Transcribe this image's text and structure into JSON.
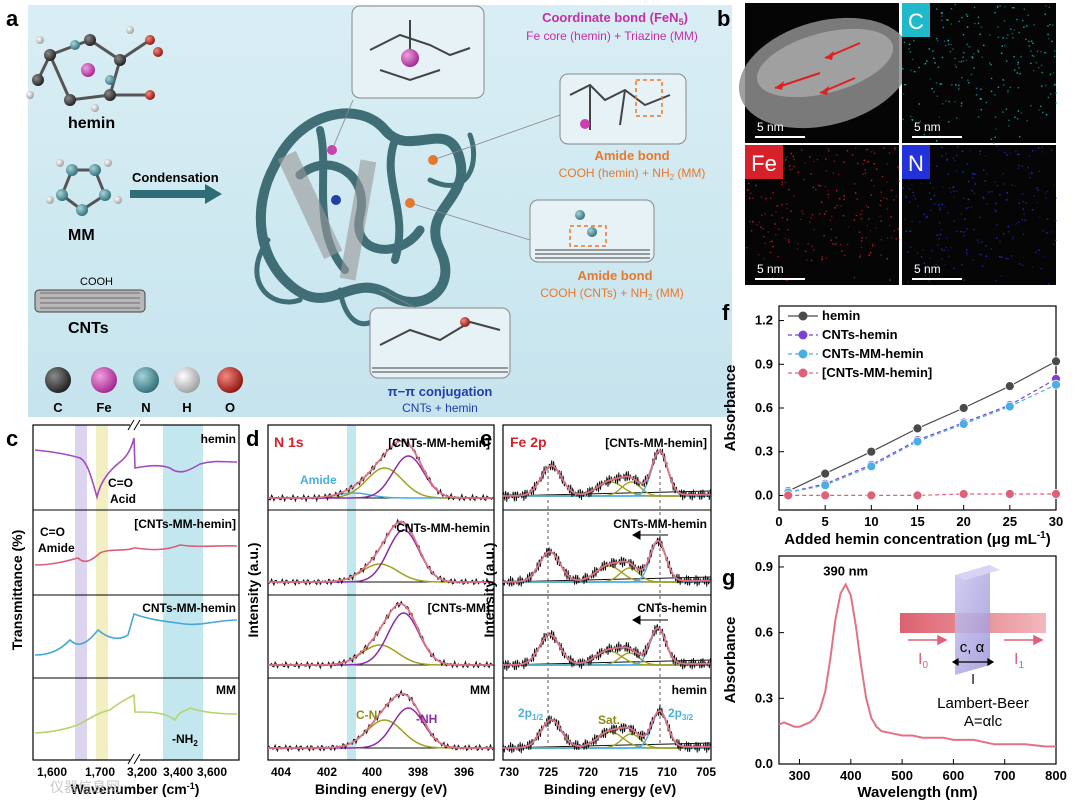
{
  "figure": {
    "panel_labels": [
      "a",
      "b",
      "c",
      "d",
      "e",
      "f",
      "g"
    ],
    "colors": {
      "bg_a": "#cfe7ef",
      "carbon": "#3a3a3a",
      "fe": "#cc3fb3",
      "n": "#4e98a5",
      "h": "#d8d8d8",
      "o": "#c9271f",
      "orange": "#e8782b",
      "purple": "#8a2ca8",
      "blue": "#1f3ea8",
      "curve_pink": "#e07386"
    }
  },
  "panel_a": {
    "hemin": "hemin",
    "mm": "MM",
    "cooh": "COOH",
    "cnts": "CNTs",
    "condensation": "Condensation",
    "coord_title": "Coordinate bond (FeN",
    "coord_sub": "5",
    "coord_close": ")",
    "coord_desc": "Fe core (hemin) + Triazine (MM)",
    "amide1_title": "Amide bond",
    "amide1_desc": "COOH (hemin) + NH",
    "amide1_sub": "2",
    "amide1_close": " (MM)",
    "amide2_title": "Amide bond",
    "amide2_desc": "COOH (CNTs) + NH",
    "amide2_sub": "2",
    "amide2_close": " (MM)",
    "pipi_title": "π−π conjugation",
    "pipi_desc": "CNTs + hemin",
    "legend": [
      "C",
      "Fe",
      "N",
      "H",
      "O"
    ]
  },
  "panel_b": {
    "tiles": [
      {
        "label": "",
        "scale": "5 nm",
        "tint": "#8a8a8a"
      },
      {
        "label": "C",
        "scale": "5 nm",
        "tint": "#1fb9c9"
      },
      {
        "label": "Fe",
        "scale": "5 nm",
        "tint": "#d6202a"
      },
      {
        "label": "N",
        "scale": "5 nm",
        "tint": "#2232d8"
      }
    ]
  },
  "panel_c": {
    "ylabel": "Transmittance (%)",
    "xlabel_pre": "Wavenumber (cm",
    "xlabel_sup": "-1",
    "xlabel_post": ")",
    "xticks": [
      "1,600",
      "1,700",
      "3,200",
      "3,400",
      "3,600"
    ],
    "traces": [
      "hemin",
      "[CNTs-MM-hemin]",
      "CNTs-MM-hemin",
      "MM"
    ],
    "ann_co_acid_1": "C=O",
    "ann_co_acid_2": "Acid",
    "ann_co_amide_1": "C=O",
    "ann_co_amide_2": "Amide",
    "ann_nh2_pre": "-NH",
    "ann_nh2_sub": "2"
  },
  "panel_d": {
    "title": "N 1s",
    "ylabel": "Intensity (a.u.)",
    "xlabel": "Binding energy (eV)",
    "xticks": [
      "404",
      "402",
      "400",
      "398",
      "396"
    ],
    "traces": [
      "[CNTs-MM-hemin]",
      "CNTs-MM-hemin",
      "[CNTs-MM]",
      "MM"
    ],
    "amide": "Amide",
    "cn": "C-N",
    "nh": "-NH"
  },
  "panel_e": {
    "title": "Fe 2p",
    "ylabel": "Intensity (a.u.)",
    "xlabel": "Binding energy (eV)",
    "xticks": [
      "730",
      "725",
      "720",
      "715",
      "710",
      "705"
    ],
    "traces": [
      "[CNTs-MM-hemin]",
      "CNTs-MM-hemin",
      "CNTs-hemin",
      "hemin"
    ],
    "p12": "2p",
    "p12_sub": "1/2",
    "sat": "Sat.",
    "p32": "2p",
    "p32_sub": "3/2"
  },
  "panel_f_text": {
    "xlabel_pre": "Added hemin concentration (μg mL",
    "xlabel_sup": "-1",
    "xlabel_post": ")"
  },
  "panel_g_text": {
    "peak": "390 nm",
    "i0": "I",
    "i0_sub": "0",
    "i1": "I",
    "i1_sub": "1",
    "c_alpha": "c, α",
    "l": "l",
    "law": "Lambert-Beer",
    "eq": "A=αlc"
  },
  "watermark": "仪器信息网",
  "chart_data": [
    {
      "id": "f",
      "type": "line",
      "xlabel": "Added hemin concentration (μg mL-1)",
      "ylabel": "Absorbance",
      "xlim": [
        0,
        30
      ],
      "ylim": [
        -0.1,
        1.3
      ],
      "xticks": [
        0,
        5,
        10,
        15,
        20,
        25,
        30
      ],
      "yticks": [
        0.0,
        0.3,
        0.6,
        0.9,
        1.2
      ],
      "legend_position": "top-left",
      "series": [
        {
          "name": "hemin",
          "color": "#4a4a4a",
          "line": "solid",
          "x": [
            1,
            5,
            10,
            15,
            20,
            25,
            30
          ],
          "values": [
            0.03,
            0.15,
            0.3,
            0.46,
            0.6,
            0.75,
            0.92
          ]
        },
        {
          "name": "CNTs-hemin",
          "color": "#7b3fd6",
          "line": "dashed",
          "x": [
            1,
            5,
            10,
            15,
            20,
            25,
            30
          ],
          "values": [
            0.02,
            0.08,
            0.21,
            0.38,
            0.5,
            0.62,
            0.8
          ]
        },
        {
          "name": "CNTs-MM-hemin",
          "color": "#4aaee3",
          "line": "dashed",
          "x": [
            1,
            5,
            10,
            15,
            20,
            25,
            30
          ],
          "values": [
            0.02,
            0.07,
            0.2,
            0.37,
            0.49,
            0.61,
            0.76
          ]
        },
        {
          "name": "[CNTs-MM-hemin]",
          "color": "#e0607a",
          "line": "dashed",
          "x": [
            1,
            5,
            10,
            15,
            20,
            25,
            30
          ],
          "values": [
            0.0,
            0.0,
            0.0,
            0.0,
            0.01,
            0.01,
            0.01
          ]
        }
      ]
    },
    {
      "id": "g",
      "type": "line",
      "xlabel": "Wavelength (nm)",
      "ylabel": "Absorbance",
      "xlim": [
        260,
        800
      ],
      "ylim": [
        0,
        0.95
      ],
      "xticks": [
        300,
        400,
        500,
        600,
        700,
        800
      ],
      "yticks": [
        0.0,
        0.3,
        0.6,
        0.9
      ],
      "series": [
        {
          "name": "absorbance",
          "color": "#e07386",
          "x": [
            260,
            270,
            280,
            290,
            300,
            310,
            320,
            330,
            340,
            350,
            360,
            370,
            380,
            390,
            400,
            410,
            420,
            430,
            440,
            450,
            460,
            480,
            500,
            520,
            540,
            560,
            580,
            600,
            620,
            640,
            660,
            680,
            700,
            740,
            780,
            800
          ],
          "values": [
            0.18,
            0.19,
            0.18,
            0.17,
            0.17,
            0.18,
            0.19,
            0.21,
            0.25,
            0.33,
            0.48,
            0.66,
            0.78,
            0.82,
            0.77,
            0.63,
            0.45,
            0.3,
            0.21,
            0.17,
            0.15,
            0.14,
            0.13,
            0.13,
            0.12,
            0.12,
            0.12,
            0.11,
            0.11,
            0.11,
            0.1,
            0.09,
            0.09,
            0.09,
            0.08,
            0.08
          ]
        }
      ]
    }
  ]
}
